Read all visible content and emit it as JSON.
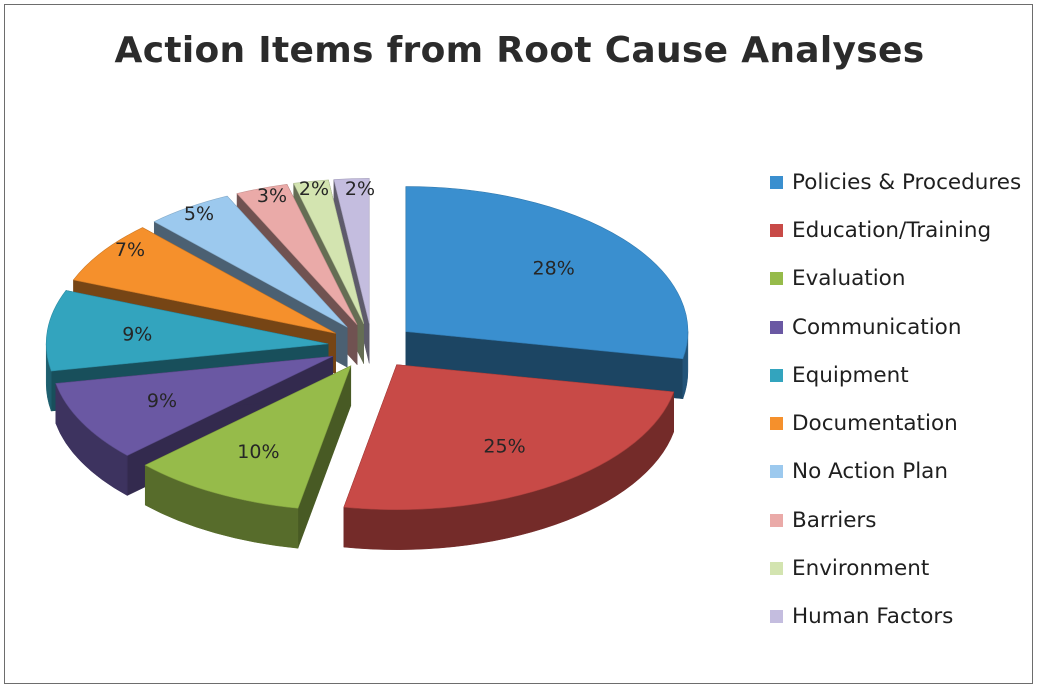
{
  "chart_data": {
    "type": "pie",
    "title": "Action Items from Root Cause Analyses",
    "style": "3d-exploded",
    "legend_position": "right",
    "categories": [
      "Policies & Procedures",
      "Education/Training",
      "Evaluation",
      "Communication",
      "Equipment",
      "Documentation",
      "No Action Plan",
      "Barriers",
      "Environment",
      "Human Factors"
    ],
    "values": [
      28,
      25,
      10,
      9,
      9,
      7,
      5,
      3,
      2,
      2
    ],
    "data_labels": [
      "28%",
      "25%",
      "10%",
      "9%",
      "9%",
      "7%",
      "5%",
      "3%",
      "2%",
      "2%"
    ],
    "colors": [
      "#3a8fcf",
      "#c84a47",
      "#96bb4a",
      "#6a58a3",
      "#33a4be",
      "#f5902c",
      "#9cc9ee",
      "#eaaaa8",
      "#d3e4b0",
      "#c4bddf"
    ]
  }
}
